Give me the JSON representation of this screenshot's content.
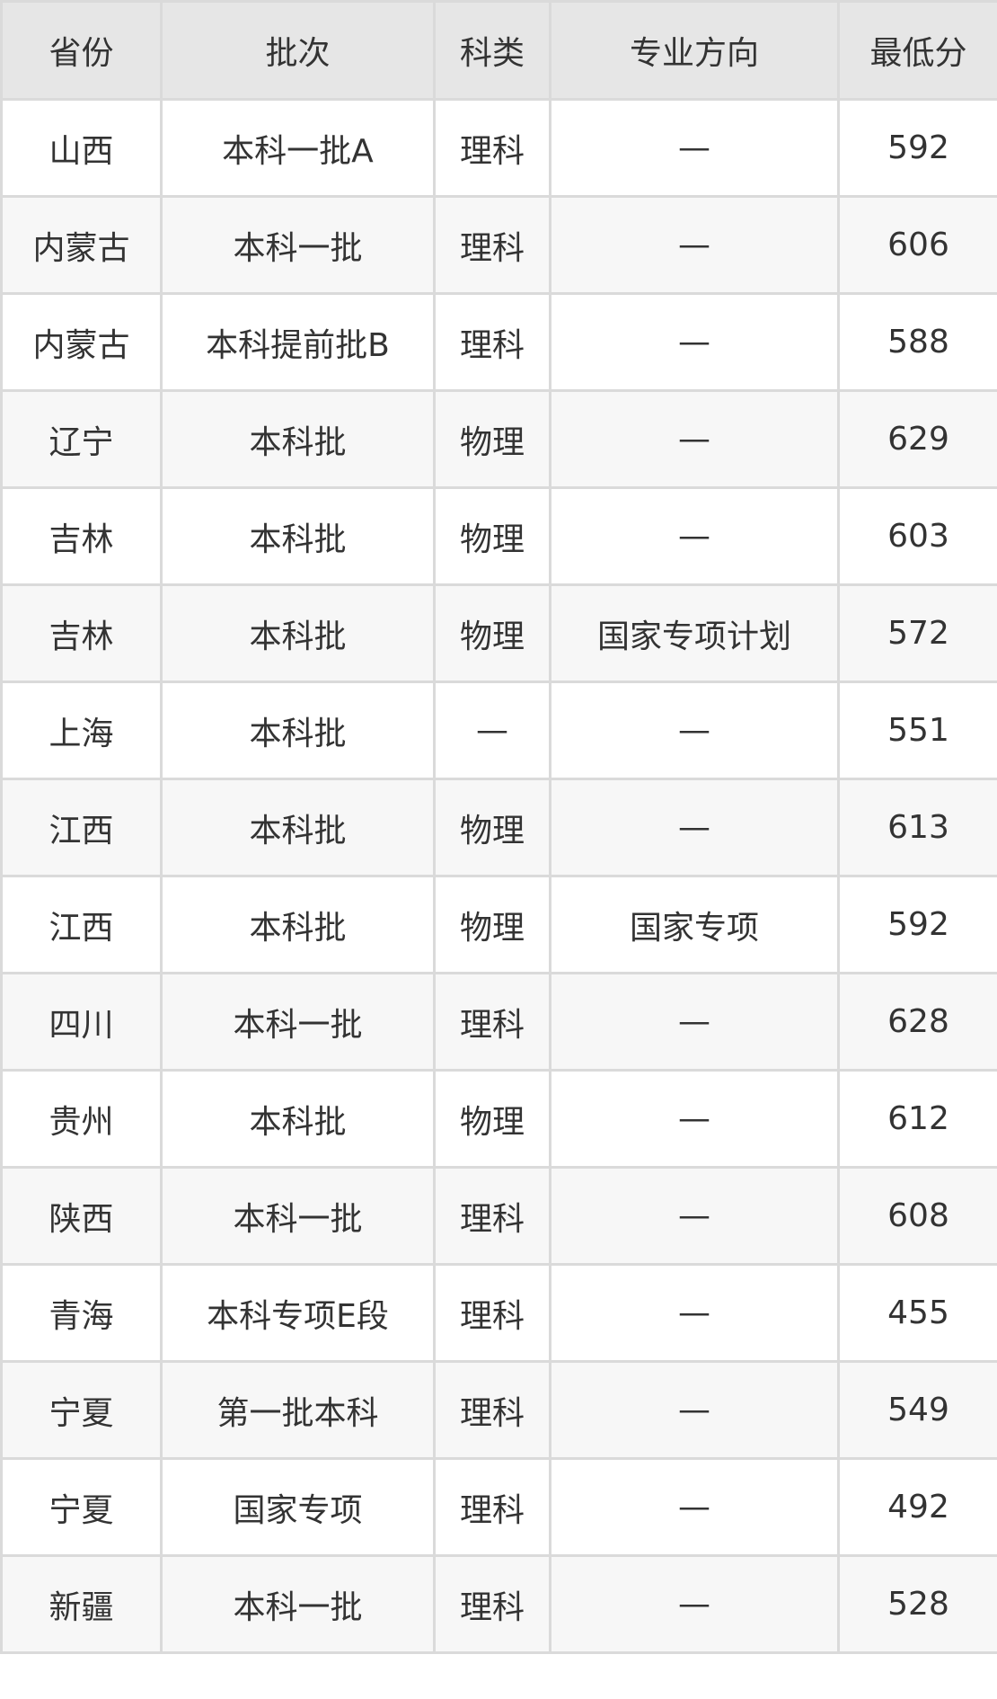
{
  "table": {
    "headers": [
      "省份",
      "批次",
      "科类",
      "专业方向",
      "最低分"
    ],
    "rows": [
      [
        "山西",
        "本科一批A",
        "理科",
        "—",
        "592"
      ],
      [
        "内蒙古",
        "本科一批",
        "理科",
        "—",
        "606"
      ],
      [
        "内蒙古",
        "本科提前批B",
        "理科",
        "—",
        "588"
      ],
      [
        "辽宁",
        "本科批",
        "物理",
        "—",
        "629"
      ],
      [
        "吉林",
        "本科批",
        "物理",
        "—",
        "603"
      ],
      [
        "吉林",
        "本科批",
        "物理",
        "国家专项计划",
        "572"
      ],
      [
        "上海",
        "本科批",
        "—",
        "—",
        "551"
      ],
      [
        "江西",
        "本科批",
        "物理",
        "—",
        "613"
      ],
      [
        "江西",
        "本科批",
        "物理",
        "国家专项",
        "592"
      ],
      [
        "四川",
        "本科一批",
        "理科",
        "—",
        "628"
      ],
      [
        "贵州",
        "本科批",
        "物理",
        "—",
        "612"
      ],
      [
        "陕西",
        "本科一批",
        "理科",
        "—",
        "608"
      ],
      [
        "青海",
        "本科专项E段",
        "理科",
        "—",
        "455"
      ],
      [
        "宁夏",
        "第一批本科",
        "理科",
        "—",
        "549"
      ],
      [
        "宁夏",
        "国家专项",
        "理科",
        "—",
        "492"
      ],
      [
        "新疆",
        "本科一批",
        "理科",
        "—",
        "528"
      ]
    ]
  },
  "colors": {
    "header_bg": "#e6e6e6",
    "alt_row_bg": "#f7f7f7",
    "border": "#dadada",
    "text": "#333333"
  }
}
